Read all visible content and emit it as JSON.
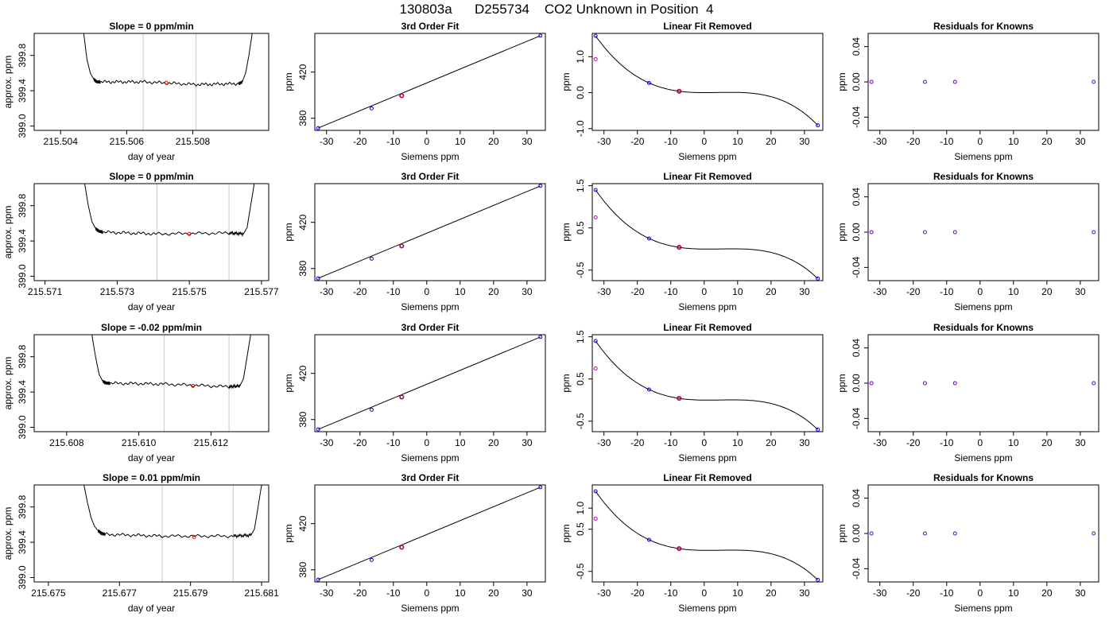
{
  "page_title": "130803a      D255734    CO2 Unknown in Position  4",
  "colors": {
    "trace": "#000000",
    "vline": "#c8c8c8",
    "red": "#ff0000",
    "blue": "#0000ff",
    "magenta": "#cc00cc",
    "frame": "#000000"
  },
  "chart_data": [
    {
      "id": "r1c1",
      "type": "line",
      "title": "Slope =  0  ppm/min",
      "xlabel": "day of year",
      "ylabel": "approx. ppm",
      "xlim": [
        215.5032,
        215.5103
      ],
      "ylim": [
        398.95,
        400.05
      ],
      "xticks": [
        "215.504",
        "215.506",
        "215.508"
      ],
      "xtick_values": [
        215.504,
        215.506,
        215.508
      ],
      "yticks": [
        "399.0",
        "399.4",
        "399.8"
      ],
      "ytick_values": [
        399.0,
        399.4,
        399.8
      ],
      "vlines": [
        215.5065,
        215.5081
      ],
      "marker": {
        "x": 215.5072,
        "y": 399.49
      },
      "x": [
        215.5047,
        215.5048,
        215.5049,
        215.505,
        215.5051,
        215.5052,
        215.5065,
        215.5081,
        215.5094,
        215.5095,
        215.5096,
        215.5097,
        215.5098
      ],
      "y": [
        400.05,
        399.75,
        399.6,
        399.53,
        399.5,
        399.5,
        399.5,
        399.47,
        399.48,
        399.5,
        399.6,
        399.8,
        400.05
      ]
    },
    {
      "id": "r1c2",
      "type": "scatter",
      "title": "3rd Order Fit",
      "xlabel": "Siemens ppm",
      "ylabel": "ppm",
      "xlim": [
        -33.5,
        35.5
      ],
      "ylim": [
        369.5,
        453.5
      ],
      "xticks": [
        "-30",
        "-20",
        "-10",
        "0",
        "10",
        "20",
        "30"
      ],
      "xtick_values": [
        -30,
        -20,
        -10,
        0,
        10,
        20,
        30
      ],
      "yticks": [
        "380",
        "420"
      ],
      "ytick_values": [
        380,
        420
      ],
      "fit_line": {
        "x": [
          -32.5,
          34
        ],
        "y": [
          371.5,
          451.5
        ]
      },
      "points": [
        {
          "x": -32.5,
          "y": 371.5
        },
        {
          "x": -16.5,
          "y": 388.5
        },
        {
          "x": -7.5,
          "y": 399.5
        },
        {
          "x": 34,
          "y": 451.5
        }
      ],
      "unknown": {
        "x": -7.5,
        "y": 399.5
      }
    },
    {
      "id": "r1c3",
      "type": "line",
      "title": "Linear Fit Removed",
      "xlabel": "Siemens ppm",
      "ylabel": "ppm",
      "xlim": [
        -33.5,
        35.5
      ],
      "ylim": [
        -1.05,
        1.65
      ],
      "xticks": [
        "-30",
        "-20",
        "-10",
        "0",
        "10",
        "20",
        "30"
      ],
      "xtick_values": [
        -30,
        -20,
        -10,
        0,
        10,
        20,
        30
      ],
      "yticks": [
        "-1.0",
        "0.0",
        "1.0"
      ],
      "ytick_values": [
        -1.0,
        0.0,
        1.0
      ],
      "curve": {
        "a": -5.92e-05,
        "b": 0.000715,
        "c": -0.00162,
        "d": 0.0
      },
      "points": [
        {
          "x": -32.5,
          "y": 1.58
        },
        {
          "x": -16.5,
          "y": 0.27
        },
        {
          "x": -7.5,
          "y": 0.04
        },
        {
          "x": 34,
          "y": -0.91
        }
      ],
      "open_point": {
        "x": -32.5,
        "y": 0.93
      },
      "unknown": {
        "x": -7.5,
        "y": 0.04
      }
    },
    {
      "id": "r1c4",
      "type": "scatter",
      "title": "Residuals for Knowns",
      "xlabel": "Siemens ppm",
      "ylabel": "ppm",
      "xlim": [
        -33.5,
        35.5
      ],
      "ylim": [
        -0.055,
        0.055
      ],
      "xticks": [
        "-30",
        "-20",
        "-10",
        "0",
        "10",
        "20",
        "30"
      ],
      "xtick_values": [
        -30,
        -20,
        -10,
        0,
        10,
        20,
        30
      ],
      "yticks": [
        "-0.04",
        "0.00",
        "0.04"
      ],
      "ytick_values": [
        -0.04,
        0.0,
        0.04
      ],
      "points": [
        {
          "x": -32.5,
          "y": 0
        },
        {
          "x": -16.5,
          "y": 0
        },
        {
          "x": -7.5,
          "y": 0
        },
        {
          "x": 34,
          "y": 0
        }
      ]
    },
    {
      "id": "r2c1",
      "type": "line",
      "title": "Slope =  0  ppm/min",
      "xlabel": "day of year",
      "ylabel": "approx. ppm",
      "xlim": [
        215.5707,
        215.5772
      ],
      "ylim": [
        398.95,
        400.05
      ],
      "xticks": [
        "215.571",
        "215.573",
        "215.575",
        "215.577"
      ],
      "xtick_values": [
        215.571,
        215.573,
        215.575,
        215.577
      ],
      "yticks": [
        "399.0",
        "399.4",
        "399.8"
      ],
      "ytick_values": [
        399.0,
        399.4,
        399.8
      ],
      "vlines": [
        215.5741,
        215.5761
      ],
      "marker": {
        "x": 215.575,
        "y": 399.48
      },
      "x": [
        215.5721,
        215.5722,
        215.5723,
        215.5724,
        215.5725,
        215.5726,
        215.5741,
        215.5761,
        215.5765,
        215.5766,
        215.5767,
        215.5768
      ],
      "y": [
        400.05,
        399.8,
        399.62,
        399.54,
        399.51,
        399.5,
        399.48,
        399.49,
        399.48,
        399.55,
        399.8,
        400.05
      ]
    },
    {
      "id": "r2c2",
      "type": "scatter",
      "title": "3rd Order Fit",
      "xlabel": "Siemens ppm",
      "ylabel": "ppm",
      "xlim": [
        -33.5,
        35.5
      ],
      "ylim": [
        369.5,
        453.5
      ],
      "xticks": [
        "-30",
        "-20",
        "-10",
        "0",
        "10",
        "20",
        "30"
      ],
      "xtick_values": [
        -30,
        -20,
        -10,
        0,
        10,
        20,
        30
      ],
      "yticks": [
        "380",
        "420"
      ],
      "ytick_values": [
        380,
        420
      ],
      "fit_line": {
        "x": [
          -32.5,
          34
        ],
        "y": [
          371.5,
          451.5
        ]
      },
      "points": [
        {
          "x": -32.5,
          "y": 371.5
        },
        {
          "x": -16.5,
          "y": 388.5
        },
        {
          "x": -7.5,
          "y": 399.5
        },
        {
          "x": 34,
          "y": 451.5
        }
      ],
      "unknown": {
        "x": -7.5,
        "y": 399.5
      }
    },
    {
      "id": "r2c3",
      "type": "line",
      "title": "Linear Fit Removed",
      "xlabel": "Siemens ppm",
      "ylabel": "ppm",
      "xlim": [
        -33.5,
        35.5
      ],
      "ylim": [
        -0.75,
        1.55
      ],
      "xticks": [
        "-30",
        "-20",
        "-10",
        "0",
        "10",
        "20",
        "30"
      ],
      "xtick_values": [
        -30,
        -20,
        -10,
        0,
        10,
        20,
        30
      ],
      "yticks": [
        "-0.5",
        "0.5",
        "1.5"
      ],
      "ytick_values": [
        -0.5,
        0.5,
        1.5
      ],
      "curve": {
        "a": -5.92e-05,
        "b": 0.000715,
        "c": -0.00162,
        "d": 0.0
      },
      "points": [
        {
          "x": -32.5,
          "y": 1.4
        },
        {
          "x": -16.5,
          "y": 0.25
        },
        {
          "x": -7.5,
          "y": 0.04
        },
        {
          "x": 34,
          "y": -0.7
        }
      ],
      "open_point": {
        "x": -32.5,
        "y": 0.75
      },
      "unknown": {
        "x": -7.5,
        "y": 0.04
      }
    },
    {
      "id": "r2c4",
      "type": "scatter",
      "title": "Residuals for Knowns",
      "xlabel": "Siemens ppm",
      "ylabel": "ppm",
      "xlim": [
        -33.5,
        35.5
      ],
      "ylim": [
        -0.055,
        0.055
      ],
      "xticks": [
        "-30",
        "-20",
        "-10",
        "0",
        "10",
        "20",
        "30"
      ],
      "xtick_values": [
        -30,
        -20,
        -10,
        0,
        10,
        20,
        30
      ],
      "yticks": [
        "-0.04",
        "0.00",
        "0.04"
      ],
      "ytick_values": [
        -0.04,
        0.0,
        0.04
      ],
      "points": [
        {
          "x": -32.5,
          "y": 0
        },
        {
          "x": -16.5,
          "y": 0
        },
        {
          "x": -7.5,
          "y": 0
        },
        {
          "x": 34,
          "y": 0
        }
      ]
    },
    {
      "id": "r3c1",
      "type": "line",
      "title": "Slope =  -0.02  ppm/min",
      "xlabel": "day of year",
      "ylabel": "approx. ppm",
      "xlim": [
        215.6071,
        215.6136
      ],
      "ylim": [
        398.95,
        400.05
      ],
      "xticks": [
        "215.608",
        "215.610",
        "215.612"
      ],
      "xtick_values": [
        215.608,
        215.61,
        215.612
      ],
      "yticks": [
        "399.0",
        "399.4",
        "399.8"
      ],
      "ytick_values": [
        399.0,
        399.4,
        399.8
      ],
      "vlines": [
        215.6107,
        215.6125
      ],
      "marker": {
        "x": 215.6115,
        "y": 399.47
      },
      "x": [
        215.6087,
        215.6088,
        215.6089,
        215.609,
        215.6091,
        215.6092,
        215.6107,
        215.6125,
        215.6128,
        215.6129,
        215.613,
        215.6131
      ],
      "y": [
        400.05,
        399.8,
        399.6,
        399.52,
        399.5,
        399.5,
        399.49,
        399.46,
        399.47,
        399.55,
        399.8,
        400.05
      ]
    },
    {
      "id": "r3c2",
      "type": "scatter",
      "title": "3rd Order Fit",
      "xlabel": "Siemens ppm",
      "ylabel": "ppm",
      "xlim": [
        -33.5,
        35.5
      ],
      "ylim": [
        369.5,
        453.5
      ],
      "xticks": [
        "-30",
        "-20",
        "-10",
        "0",
        "10",
        "20",
        "30"
      ],
      "xtick_values": [
        -30,
        -20,
        -10,
        0,
        10,
        20,
        30
      ],
      "yticks": [
        "380",
        "420"
      ],
      "ytick_values": [
        380,
        420
      ],
      "fit_line": {
        "x": [
          -32.5,
          34
        ],
        "y": [
          371.5,
          451.5
        ]
      },
      "points": [
        {
          "x": -32.5,
          "y": 371.5
        },
        {
          "x": -16.5,
          "y": 388.5
        },
        {
          "x": -7.5,
          "y": 399.5
        },
        {
          "x": 34,
          "y": 451.5
        }
      ],
      "unknown": {
        "x": -7.5,
        "y": 399.5
      }
    },
    {
      "id": "r3c3",
      "type": "line",
      "title": "Linear Fit Removed",
      "xlabel": "Siemens ppm",
      "ylabel": "ppm",
      "xlim": [
        -33.5,
        35.5
      ],
      "ylim": [
        -0.75,
        1.55
      ],
      "xticks": [
        "-30",
        "-20",
        "-10",
        "0",
        "10",
        "20",
        "30"
      ],
      "xtick_values": [
        -30,
        -20,
        -10,
        0,
        10,
        20,
        30
      ],
      "yticks": [
        "-0.5",
        "0.5",
        "1.5"
      ],
      "ytick_values": [
        -0.5,
        0.5,
        1.5
      ],
      "curve": {
        "a": -5.92e-05,
        "b": 0.000715,
        "c": -0.00162,
        "d": 0.0
      },
      "points": [
        {
          "x": -32.5,
          "y": 1.4
        },
        {
          "x": -16.5,
          "y": 0.25
        },
        {
          "x": -7.5,
          "y": 0.04
        },
        {
          "x": 34,
          "y": -0.7
        }
      ],
      "open_point": {
        "x": -32.5,
        "y": 0.75
      },
      "unknown": {
        "x": -7.5,
        "y": 0.04
      }
    },
    {
      "id": "r3c4",
      "type": "scatter",
      "title": "Residuals for Knowns",
      "xlabel": "Siemens ppm",
      "ylabel": "ppm",
      "xlim": [
        -33.5,
        35.5
      ],
      "ylim": [
        -0.055,
        0.055
      ],
      "xticks": [
        "-30",
        "-20",
        "-10",
        "0",
        "10",
        "20",
        "30"
      ],
      "xtick_values": [
        -30,
        -20,
        -10,
        0,
        10,
        20,
        30
      ],
      "yticks": [
        "-0.04",
        "0.00",
        "0.04"
      ],
      "ytick_values": [
        -0.04,
        0.0,
        0.04
      ],
      "points": [
        {
          "x": -32.5,
          "y": 0
        },
        {
          "x": -16.5,
          "y": 0
        },
        {
          "x": -7.5,
          "y": 0
        },
        {
          "x": 34,
          "y": 0
        }
      ]
    },
    {
      "id": "r4c1",
      "type": "line",
      "title": "Slope =  0.01  ppm/min",
      "xlabel": "day of year",
      "ylabel": "approx. ppm",
      "xlim": [
        215.6746,
        215.6812
      ],
      "ylim": [
        398.95,
        400.05
      ],
      "xticks": [
        "215.675",
        "215.677",
        "215.679",
        "215.681"
      ],
      "xtick_values": [
        215.675,
        215.677,
        215.679,
        215.681
      ],
      "yticks": [
        "399.0",
        "399.4",
        "399.8"
      ],
      "ytick_values": [
        399.0,
        399.4,
        399.8
      ],
      "vlines": [
        215.6782,
        215.6802
      ],
      "marker": {
        "x": 215.6791,
        "y": 399.46
      },
      "x": [
        215.676,
        215.6761,
        215.6762,
        215.6763,
        215.6764,
        215.6765,
        215.6766,
        215.6782,
        215.6802,
        215.6807,
        215.6808,
        215.6809,
        215.681
      ],
      "y": [
        400.05,
        399.85,
        399.68,
        399.58,
        399.53,
        399.5,
        399.49,
        399.47,
        399.47,
        399.48,
        399.55,
        399.8,
        400.05
      ]
    },
    {
      "id": "r4c2",
      "type": "scatter",
      "title": "3rd Order Fit",
      "xlabel": "Siemens ppm",
      "ylabel": "ppm",
      "xlim": [
        -33.5,
        35.5
      ],
      "ylim": [
        369.5,
        453.5
      ],
      "xticks": [
        "-30",
        "-20",
        "-10",
        "0",
        "10",
        "20",
        "30"
      ],
      "xtick_values": [
        -30,
        -20,
        -10,
        0,
        10,
        20,
        30
      ],
      "yticks": [
        "380",
        "420"
      ],
      "ytick_values": [
        380,
        420
      ],
      "fit_line": {
        "x": [
          -32.5,
          34
        ],
        "y": [
          371.5,
          451.5
        ]
      },
      "points": [
        {
          "x": -32.5,
          "y": 371.5
        },
        {
          "x": -16.5,
          "y": 388.5
        },
        {
          "x": -7.5,
          "y": 399.5
        },
        {
          "x": 34,
          "y": 451.5
        }
      ],
      "unknown": {
        "x": -7.5,
        "y": 399.5
      }
    },
    {
      "id": "r4c3",
      "type": "line",
      "title": "Linear Fit Removed",
      "xlabel": "Siemens ppm",
      "ylabel": "ppm",
      "xlim": [
        -33.5,
        35.5
      ],
      "ylim": [
        -0.75,
        1.55
      ],
      "xticks": [
        "-30",
        "-20",
        "-10",
        "0",
        "10",
        "20",
        "30"
      ],
      "xtick_values": [
        -30,
        -20,
        -10,
        0,
        10,
        20,
        30
      ],
      "yticks": [
        "-0.5",
        "0.5",
        "1.0"
      ],
      "ytick_values": [
        -0.5,
        0.5,
        1.0
      ],
      "curve": {
        "a": -5.92e-05,
        "b": 0.000715,
        "c": -0.00162,
        "d": 0.0
      },
      "points": [
        {
          "x": -32.5,
          "y": 1.4
        },
        {
          "x": -16.5,
          "y": 0.25
        },
        {
          "x": -7.5,
          "y": 0.04
        },
        {
          "x": 34,
          "y": -0.7
        }
      ],
      "open_point": {
        "x": -32.5,
        "y": 0.75
      },
      "unknown": {
        "x": -7.5,
        "y": 0.04
      }
    },
    {
      "id": "r4c4",
      "type": "scatter",
      "title": "Residuals for Knowns",
      "xlabel": "Siemens ppm",
      "ylabel": "ppm",
      "xlim": [
        -33.5,
        35.5
      ],
      "ylim": [
        -0.055,
        0.055
      ],
      "xticks": [
        "-30",
        "-20",
        "-10",
        "0",
        "10",
        "20",
        "30"
      ],
      "xtick_values": [
        -30,
        -20,
        -10,
        0,
        10,
        20,
        30
      ],
      "yticks": [
        "-0.04",
        "0.00",
        "0.04"
      ],
      "ytick_values": [
        -0.04,
        0.0,
        0.04
      ],
      "points": [
        {
          "x": -32.5,
          "y": 0
        },
        {
          "x": -16.5,
          "y": 0
        },
        {
          "x": -7.5,
          "y": 0
        },
        {
          "x": 34,
          "y": 0
        }
      ]
    }
  ]
}
